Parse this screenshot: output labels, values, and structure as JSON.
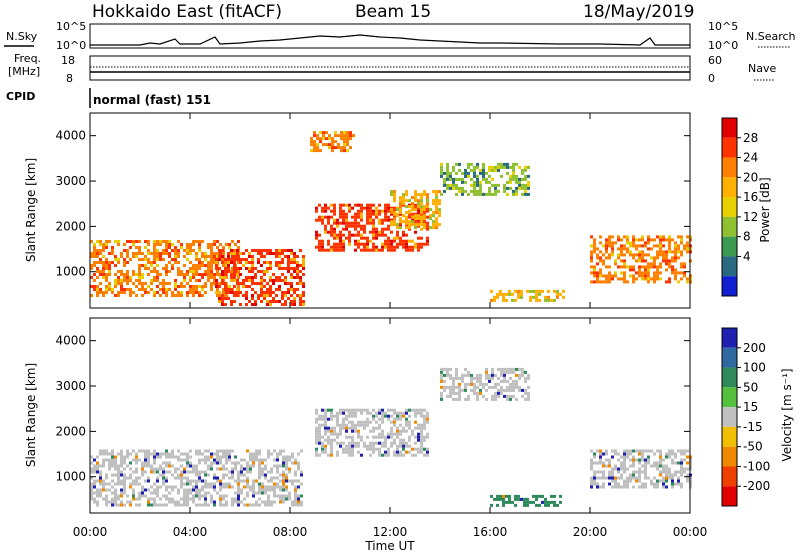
{
  "header": {
    "station": "Hokkaido East (fitACF)",
    "beam": "Beam 15",
    "date": "18/May/2019"
  },
  "strip_nsky": {
    "left_label": "N.Sky",
    "right_label": "N.Search",
    "left_ticks": [
      "10^5",
      "10^0"
    ],
    "right_ticks": [
      "10^5",
      "10^0"
    ]
  },
  "strip_freq": {
    "left_label_1": "Freq.",
    "left_label_2": "[MHz]",
    "right_label": "Nave",
    "left_ticks": [
      "18",
      "8"
    ],
    "right_ticks": [
      "60",
      "0"
    ]
  },
  "strip_cpid": {
    "label": "CPID",
    "text": "normal (fast) 151"
  },
  "power_scale": {
    "label": "Power [dB]",
    "ticks": [
      "28",
      "24",
      "20",
      "16",
      "12",
      "8",
      "4"
    ],
    "colors": [
      "#e00000",
      "#ff3300",
      "#ff8000",
      "#ffb000",
      "#e8d000",
      "#8fc030",
      "#3a9a50",
      "#2a6a80",
      "#1020d0"
    ]
  },
  "velocity_scale": {
    "label": "Velocity [m s⁻¹]",
    "ticks": [
      "200",
      "100",
      "50",
      "15",
      "-15",
      "-50",
      "-100",
      "-200"
    ],
    "colors": [
      "#2020b0",
      "#2f6aa0",
      "#2e8a5a",
      "#55c040",
      "#c0c0c0",
      "#f0c000",
      "#f08a00",
      "#f04000",
      "#e00000"
    ]
  },
  "chart_data": [
    {
      "type": "heatmap",
      "name": "power",
      "ylabel": "Slant Range [km]",
      "xlabel": "Time UT",
      "x_ticks": [
        "00:00",
        "04:00",
        "08:00",
        "12:00",
        "16:00",
        "20:00",
        "00:00"
      ],
      "xlim": [
        0,
        24
      ],
      "y_ticks": [
        1000,
        2000,
        3000,
        4000
      ],
      "ylim": [
        200,
        4500
      ],
      "regions": [
        {
          "x": [
            0,
            6
          ],
          "y": [
            500,
            1700
          ],
          "value": 22
        },
        {
          "x": [
            5,
            8.5
          ],
          "y": [
            300,
            1500
          ],
          "value": 28
        },
        {
          "x": [
            8.8,
            10.5
          ],
          "y": [
            3700,
            4100
          ],
          "value": 22
        },
        {
          "x": [
            9,
            13.5
          ],
          "y": [
            1500,
            2500
          ],
          "value": 26
        },
        {
          "x": [
            12,
            14
          ],
          "y": [
            2000,
            2800
          ],
          "value": 18
        },
        {
          "x": [
            14,
            17.5
          ],
          "y": [
            2700,
            3400
          ],
          "value": 12
        },
        {
          "x": [
            20,
            24
          ],
          "y": [
            800,
            1800
          ],
          "value": 24
        },
        {
          "x": [
            16,
            19
          ],
          "y": [
            400,
            600
          ],
          "value": 20
        }
      ]
    },
    {
      "type": "heatmap",
      "name": "velocity",
      "ylabel": "Slant Range [km]",
      "xlabel": "Time UT",
      "x_ticks": [
        "00:00",
        "04:00",
        "08:00",
        "12:00",
        "16:00",
        "20:00",
        "00:00"
      ],
      "xlim": [
        0,
        24
      ],
      "y_ticks": [
        1000,
        2000,
        3000,
        4000
      ],
      "ylim": [
        200,
        4500
      ],
      "regions": [
        {
          "x": [
            0,
            8.5
          ],
          "y": [
            400,
            1600
          ],
          "value": 0
        },
        {
          "x": [
            9,
            13.5
          ],
          "y": [
            1500,
            2500
          ],
          "value": 0
        },
        {
          "x": [
            14,
            17.5
          ],
          "y": [
            2700,
            3400
          ],
          "value": 0
        },
        {
          "x": [
            20,
            24
          ],
          "y": [
            800,
            1600
          ],
          "value": 0
        },
        {
          "x": [
            16,
            19
          ],
          "y": [
            400,
            600
          ],
          "value": 40
        }
      ]
    }
  ]
}
